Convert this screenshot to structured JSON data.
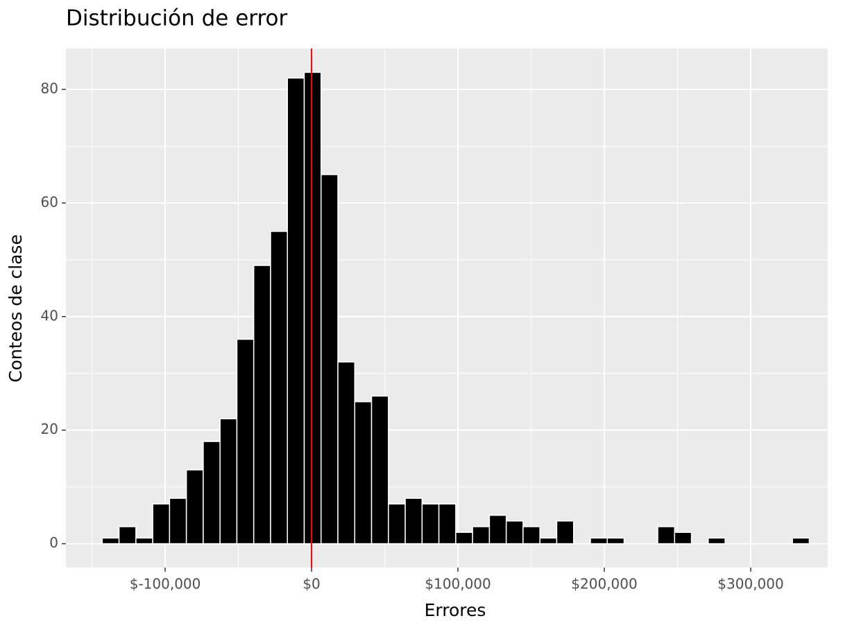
{
  "chart_data": {
    "type": "histogram",
    "title": "Distribución de error",
    "x_label": "Errores",
    "y_label": "Conteos de clase",
    "bins": [
      -143000,
      -131500,
      -120000,
      -108500,
      -97000,
      -85500,
      -74000,
      -62500,
      -51000,
      -39500,
      -28000,
      -16500,
      -5000,
      6500,
      18000,
      29500,
      41000,
      52500,
      64000,
      75500,
      87000,
      98500,
      110000,
      121500,
      133000,
      144500,
      156000,
      167500,
      179000,
      190500,
      202000,
      213500,
      225000,
      236500,
      248000,
      259500,
      271000,
      282500,
      294000,
      305500,
      317000,
      328500,
      340000
    ],
    "values": [
      1,
      3,
      1,
      7,
      8,
      13,
      18,
      22,
      36,
      49,
      55,
      82,
      83,
      65,
      32,
      25,
      26,
      7,
      8,
      7,
      7,
      2,
      3,
      5,
      4,
      3,
      1,
      4,
      0,
      1,
      1,
      0,
      0,
      3,
      2,
      0,
      1,
      0,
      0,
      0,
      0,
      1
    ],
    "color": "#000000",
    "edge_color": "#ffffff",
    "vline": {
      "value": 0,
      "color": "#ff0000"
    },
    "xlim": [
      -167800,
      352600
    ],
    "ylim": [
      -4.2,
      87.2
    ],
    "xticks": [
      {
        "value": -100000,
        "label": "$-100,000"
      },
      {
        "value": 0,
        "label": "$0"
      },
      {
        "value": 100000,
        "label": "$100,000"
      },
      {
        "value": 200000,
        "label": "$200,000"
      },
      {
        "value": 300000,
        "label": "$300,000"
      }
    ],
    "yticks": [
      0,
      20,
      40,
      60,
      80
    ],
    "x_minor_ticks": [
      -150000,
      -50000,
      50000,
      150000,
      250000
    ],
    "y_minor_ticks": [
      10,
      30,
      50,
      70
    ],
    "grid": true
  }
}
